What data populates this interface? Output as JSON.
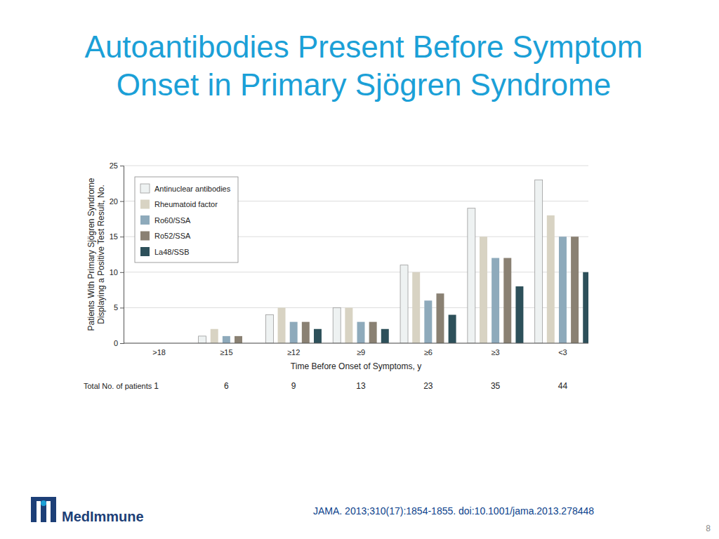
{
  "slide": {
    "title": [
      "Autoantibodies Present Before Symptom",
      "Onset in Primary Sjögren Syndrome"
    ],
    "source": "JAMA. 2013;310(17):1854-1855. doi:10.1001/jama.2013.278448",
    "logo": "MedImmune",
    "page": 8
  },
  "chart_data": {
    "type": "bar",
    "y_label": [
      "Patients With Primary Sjögren Syndrome",
      "Displaying a Positive Test Result, No."
    ],
    "x_label": "Time Before Onset of Symptoms, y",
    "categories": [
      ">18",
      "≥15",
      "≥12",
      "≥9",
      "≥6",
      "≥3",
      "<3"
    ],
    "series": [
      {
        "name": "Antinuclear antibodies",
        "color": "#eef2f2",
        "values": [
          0,
          1,
          4,
          5,
          11,
          19,
          23
        ]
      },
      {
        "name": "Rheumatoid factor",
        "color": "#d8d3c3",
        "values": [
          0,
          2,
          5,
          5,
          10,
          15,
          18
        ]
      },
      {
        "name": "Ro60/SSA",
        "color": "#8eaabb",
        "values": [
          0,
          1,
          3,
          3,
          6,
          12,
          15
        ]
      },
      {
        "name": "Ro52/SSA",
        "color": "#8a8173",
        "values": [
          0,
          1,
          3,
          3,
          7,
          12,
          15
        ]
      },
      {
        "name": "La48/SSB",
        "color": "#2d505a",
        "values": [
          0,
          0,
          2,
          2,
          4,
          8,
          10
        ]
      }
    ],
    "totals_label": "Total No. of patients",
    "totals": [
      1,
      6,
      9,
      13,
      23,
      35,
      44
    ],
    "ylim": [
      0,
      25
    ],
    "yticks": [
      0,
      5,
      10,
      15,
      20,
      25
    ],
    "grid": true,
    "legend": "upper left"
  }
}
